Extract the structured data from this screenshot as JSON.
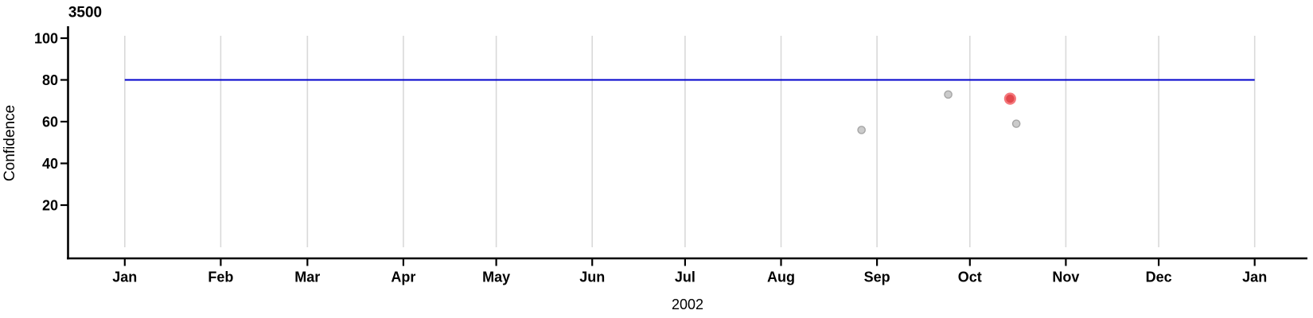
{
  "page": {
    "background": "#ffffff"
  },
  "chart_data": {
    "type": "scatter",
    "title": "3500",
    "xlabel": "2002",
    "ylabel": "Confidence",
    "x_range": [
      "2002-01-01",
      "2003-01-01"
    ],
    "ylim": [
      -5.5,
      105.5
    ],
    "y_ticks": [
      100,
      80,
      60,
      40,
      20
    ],
    "x_ticks": [
      {
        "date": "2002-01-01",
        "label": "Jan"
      },
      {
        "date": "2002-02-01",
        "label": "Feb"
      },
      {
        "date": "2002-03-01",
        "label": "Mar"
      },
      {
        "date": "2002-04-01",
        "label": "Apr"
      },
      {
        "date": "2002-05-01",
        "label": "May"
      },
      {
        "date": "2002-06-01",
        "label": "Jun"
      },
      {
        "date": "2002-07-01",
        "label": "Jul"
      },
      {
        "date": "2002-08-01",
        "label": "Aug"
      },
      {
        "date": "2002-09-01",
        "label": "Sep"
      },
      {
        "date": "2002-10-01",
        "label": "Oct"
      },
      {
        "date": "2002-11-01",
        "label": "Nov"
      },
      {
        "date": "2002-12-01",
        "label": "Dec"
      },
      {
        "date": "2003-01-01",
        "label": "Jan"
      }
    ],
    "grid": {
      "vertical_monthly": true,
      "color": "#d9d9d9"
    },
    "legend": "none",
    "axis_color": "#000000",
    "reference_line": {
      "y": 80,
      "color": "#0000cc"
    },
    "series": [
      {
        "name": "observed-points",
        "marker": {
          "shape": "circle",
          "radius": 4.6,
          "fill": "#cbcbcb",
          "stroke": "#a6a6a6",
          "stroke_width": 1.4
        },
        "points": [
          {
            "date": "2002-08-27",
            "y": 56
          },
          {
            "date": "2002-09-24",
            "y": 73
          },
          {
            "date": "2002-10-16",
            "y": 59
          }
        ]
      },
      {
        "name": "highlighted-point",
        "marker": {
          "shape": "circle",
          "radius": 6.4,
          "fill": "#e2484d",
          "stroke": "#f4787c",
          "stroke_width": 2.4
        },
        "points": [
          {
            "date": "2002-10-14",
            "y": 71
          }
        ]
      }
    ]
  }
}
